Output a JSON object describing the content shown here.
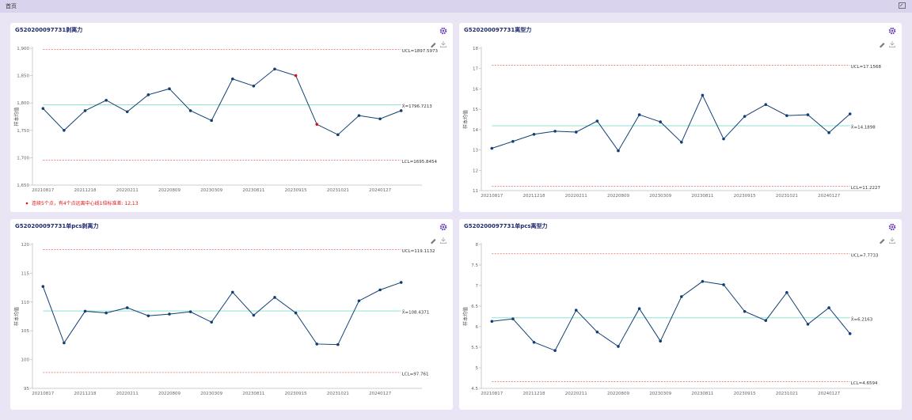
{
  "header": {
    "title": "首页"
  },
  "chart_data": [
    {
      "type": "line",
      "title": "G520200097731剥离力",
      "y_label": "样本均值",
      "categories": [
        "20210817",
        null,
        "20211218",
        null,
        "20220211",
        null,
        "20220809",
        null,
        "20230309",
        null,
        "20230811",
        null,
        "20230915",
        null,
        "20231021",
        null,
        "20240127",
        null
      ],
      "values": [
        1790,
        1750,
        1786,
        1805,
        1784,
        1815,
        1826,
        1786,
        1768,
        1844,
        1831,
        1862,
        1850,
        1761,
        1742,
        1777,
        1771,
        1786
      ],
      "color": "#123f73",
      "point_colors": [
        "#123f73",
        "#123f73",
        "#123f73",
        "#123f73",
        "#123f73",
        "#123f73",
        "#123f73",
        "#123f73",
        "#123f73",
        "#123f73",
        "#123f73",
        "#123f73",
        "#e01010",
        "#e01010",
        "#123f73",
        "#123f73",
        "#123f73",
        "#123f73"
      ],
      "ylim": [
        1650,
        1900
      ],
      "yticks": [
        {
          "value": 1650,
          "label": "1,650"
        },
        {
          "value": 1700,
          "label": "1,700"
        },
        {
          "value": 1750,
          "label": "1,750"
        },
        {
          "value": 1800,
          "label": "1,800"
        },
        {
          "value": 1850,
          "label": "1,850"
        },
        {
          "value": 1900,
          "label": "1,900"
        }
      ],
      "control_lines": [
        {
          "value": 1897.5973,
          "label": "UCL=1897.5973",
          "color": "#e04848",
          "dashed": true
        },
        {
          "value": 1796.7213,
          "label": "X̄=1796.7213",
          "color": "#8fe3d2",
          "dashed": false
        },
        {
          "value": 1695.8454,
          "label": "LCL=1695.8454",
          "color": "#e04848",
          "dashed": true
        }
      ],
      "annotation": "连续5个点，有4个点远离中心线1倍标准差: 12,13"
    },
    {
      "type": "line",
      "title": "G520200097731离型力",
      "y_label": "样本均值",
      "categories": [
        "20210817",
        null,
        "20211218",
        null,
        "20220211",
        null,
        "20220809",
        null,
        "20230309",
        null,
        "20230811",
        null,
        "20230915",
        null,
        "20231021",
        null,
        "20240127",
        null
      ],
      "values": [
        13.08,
        13.42,
        13.77,
        13.92,
        13.88,
        14.42,
        12.96,
        14.73,
        14.38,
        13.38,
        15.69,
        13.54,
        14.65,
        15.23,
        14.69,
        14.73,
        13.85,
        14.77
      ],
      "color": "#123f73",
      "ylim": [
        11,
        18
      ],
      "yticks": [
        11,
        12,
        13,
        14,
        15,
        16,
        17,
        18
      ],
      "control_lines": [
        {
          "value": 17.1568,
          "label": "UCL=17.1568",
          "color": "#e04848",
          "dashed": true
        },
        {
          "value": 14.1898,
          "label": "X̄=14.1898",
          "color": "#8fe3d2",
          "dashed": false
        },
        {
          "value": 11.2227,
          "label": "LCL=11.2227",
          "color": "#e04848",
          "dashed": true
        }
      ]
    },
    {
      "type": "line",
      "title": "G520200097731单pcs剥离力",
      "y_label": "样本均值",
      "categories": [
        "20210817",
        null,
        "20211218",
        null,
        "20220211",
        null,
        "20220809",
        null,
        "20230309",
        null,
        "20230811",
        null,
        "20230915",
        null,
        "20231021",
        null,
        "20240127",
        null
      ],
      "values": [
        112.7,
        102.9,
        108.4,
        108.1,
        109.0,
        107.6,
        107.9,
        108.3,
        106.5,
        111.7,
        107.7,
        110.8,
        108.1,
        102.7,
        102.6,
        110.2,
        112.1,
        113.4
      ],
      "color": "#123f73",
      "ylim": [
        95,
        120
      ],
      "yticks": [
        95,
        100,
        105,
        110,
        115,
        120
      ],
      "control_lines": [
        {
          "value": 119.1132,
          "label": "UCL=119.1132",
          "color": "#e04848",
          "dashed": true
        },
        {
          "value": 108.4371,
          "label": "X̄=108.4371",
          "color": "#8fe3d2",
          "dashed": false
        },
        {
          "value": 97.761,
          "label": "LCL=97.761",
          "color": "#e04848",
          "dashed": true
        }
      ]
    },
    {
      "type": "line",
      "title": "G520200097731单pcs离型力",
      "y_label": "样本均值",
      "categories": [
        "20210817",
        null,
        "20211218",
        null,
        "20220211",
        null,
        "20220809",
        null,
        "20230309",
        null,
        "20230811",
        null,
        "20230915",
        null,
        "20231021",
        null,
        "20240127",
        null
      ],
      "values": [
        6.13,
        6.19,
        5.62,
        5.42,
        6.4,
        5.87,
        5.52,
        6.44,
        5.65,
        6.73,
        7.1,
        7.02,
        6.37,
        6.15,
        6.83,
        6.06,
        6.46,
        5.83
      ],
      "color": "#123f73",
      "ylim": [
        4.5,
        8
      ],
      "yticks": [
        4.5,
        5,
        5.5,
        6,
        6.5,
        7,
        7.5,
        8
      ],
      "control_lines": [
        {
          "value": 7.7733,
          "label": "UCL=7.7733",
          "color": "#e04848",
          "dashed": true
        },
        {
          "value": 6.2163,
          "label": "X̄=6.2163",
          "color": "#8fe3d2",
          "dashed": false
        },
        {
          "value": 4.6594,
          "label": "LCL=4.6594",
          "color": "#e04848",
          "dashed": true
        }
      ]
    }
  ]
}
